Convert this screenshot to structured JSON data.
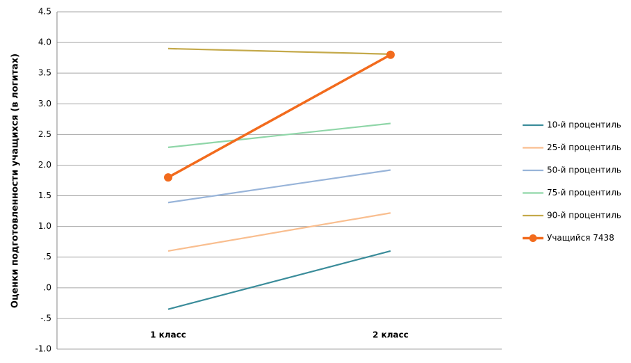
{
  "chart_data": {
    "type": "line",
    "y_label": "Оценки подготовленности учащихся (в логитах)",
    "categories": [
      "1 класс",
      "2 класс"
    ],
    "series": [
      {
        "name": "10-й процентиль",
        "color": "#3a8c9a",
        "values": [
          -0.35,
          0.6
        ]
      },
      {
        "name": "25-й процентиль",
        "color": "#f9be8f",
        "values": [
          0.6,
          1.22
        ]
      },
      {
        "name": "50-й процентиль",
        "color": "#98b4d9",
        "values": [
          1.39,
          1.92
        ]
      },
      {
        "name": "75-й процентиль",
        "color": "#8fd6a8",
        "values": [
          2.29,
          2.68
        ]
      },
      {
        "name": "90-й процентиль",
        "color": "#c4a94a",
        "values": [
          3.9,
          3.81
        ]
      },
      {
        "name": "Учащийся 7438",
        "color": "#f26b1d",
        "values": [
          1.8,
          3.8
        ],
        "markers": true
      }
    ],
    "ylim": [
      -1.0,
      4.5
    ],
    "yticks": [
      {
        "value": -1.0,
        "label": "-1.0"
      },
      {
        "value": -0.5,
        "label": "-.5"
      },
      {
        "value": 0,
        "label": ".0"
      },
      {
        "value": 0.5,
        "label": ".5"
      },
      {
        "value": 1.0,
        "label": "1.0"
      },
      1.5,
      {
        "value": 2.0,
        "label": "2.0"
      },
      2.5,
      {
        "value": 3.0,
        "label": "3.0"
      },
      3.5,
      {
        "value": 4.0,
        "label": "4.0"
      },
      4.5
    ],
    "grid": true,
    "legend": "right"
  }
}
